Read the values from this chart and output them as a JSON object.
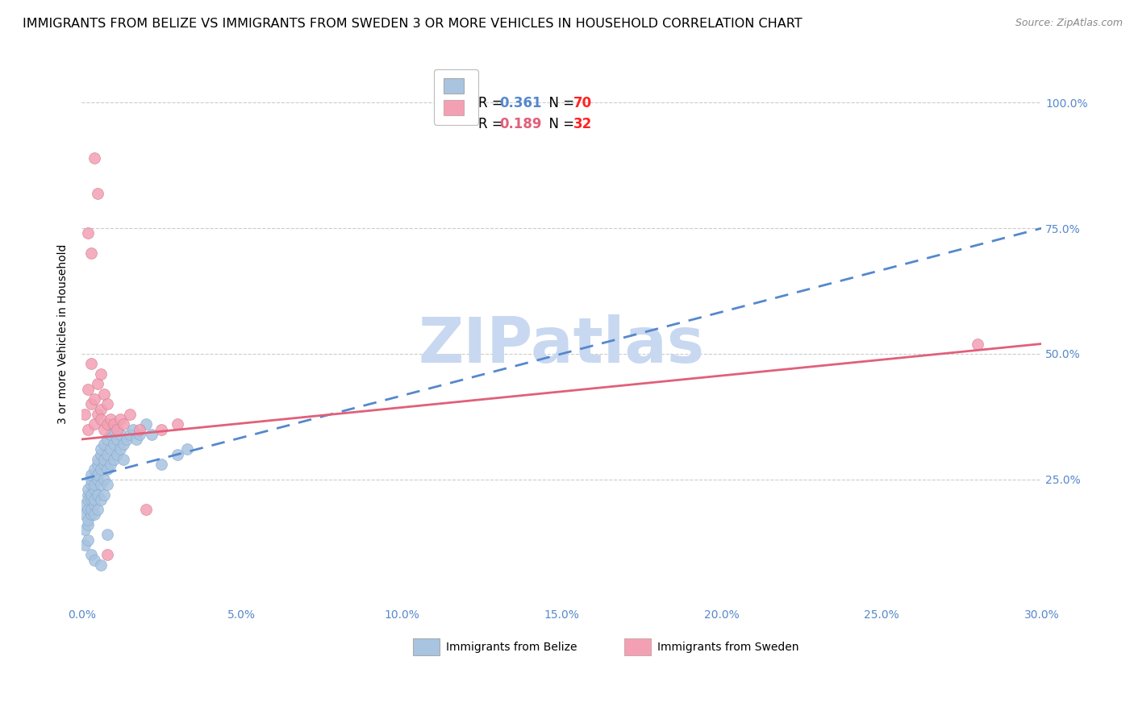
{
  "title": "IMMIGRANTS FROM BELIZE VS IMMIGRANTS FROM SWEDEN 3 OR MORE VEHICLES IN HOUSEHOLD CORRELATION CHART",
  "source": "Source: ZipAtlas.com",
  "ylabel": "3 or more Vehicles in Household",
  "ytick_labels": [
    "100.0%",
    "75.0%",
    "50.0%",
    "25.0%"
  ],
  "ytick_values": [
    1.0,
    0.75,
    0.5,
    0.25
  ],
  "xlim": [
    0.0,
    0.3
  ],
  "ylim": [
    0.0,
    1.08
  ],
  "belize_color": "#a8c4e0",
  "sweden_color": "#f4a0b4",
  "belize_line_color": "#5588cc",
  "sweden_line_color": "#e0607a",
  "belize_R": 0.361,
  "belize_N": 70,
  "sweden_R": 0.189,
  "sweden_N": 32,
  "legend_N_color": "#ff2222",
  "watermark": "ZIPatlas",
  "watermark_color": "#c8d8f0",
  "belize_x": [
    0.001,
    0.001,
    0.001,
    0.002,
    0.002,
    0.002,
    0.002,
    0.002,
    0.002,
    0.003,
    0.003,
    0.003,
    0.003,
    0.003,
    0.003,
    0.003,
    0.004,
    0.004,
    0.004,
    0.004,
    0.004,
    0.004,
    0.005,
    0.005,
    0.005,
    0.005,
    0.005,
    0.005,
    0.006,
    0.006,
    0.006,
    0.006,
    0.006,
    0.007,
    0.007,
    0.007,
    0.007,
    0.007,
    0.008,
    0.008,
    0.008,
    0.008,
    0.009,
    0.009,
    0.009,
    0.01,
    0.01,
    0.01,
    0.011,
    0.011,
    0.012,
    0.012,
    0.013,
    0.013,
    0.014,
    0.015,
    0.016,
    0.017,
    0.018,
    0.02,
    0.022,
    0.025,
    0.03,
    0.033,
    0.001,
    0.002,
    0.003,
    0.004,
    0.006,
    0.008
  ],
  "belize_y": [
    0.18,
    0.2,
    0.15,
    0.22,
    0.19,
    0.16,
    0.21,
    0.17,
    0.23,
    0.24,
    0.21,
    0.18,
    0.25,
    0.22,
    0.19,
    0.26,
    0.23,
    0.2,
    0.27,
    0.24,
    0.21,
    0.18,
    0.28,
    0.25,
    0.22,
    0.19,
    0.29,
    0.26,
    0.3,
    0.27,
    0.24,
    0.21,
    0.31,
    0.28,
    0.25,
    0.22,
    0.32,
    0.29,
    0.33,
    0.3,
    0.27,
    0.24,
    0.34,
    0.31,
    0.28,
    0.35,
    0.32,
    0.29,
    0.33,
    0.3,
    0.34,
    0.31,
    0.32,
    0.29,
    0.33,
    0.34,
    0.35,
    0.33,
    0.34,
    0.36,
    0.34,
    0.28,
    0.3,
    0.31,
    0.12,
    0.13,
    0.1,
    0.09,
    0.08,
    0.14
  ],
  "sweden_x": [
    0.001,
    0.002,
    0.002,
    0.003,
    0.003,
    0.004,
    0.004,
    0.005,
    0.005,
    0.006,
    0.006,
    0.007,
    0.007,
    0.008,
    0.008,
    0.009,
    0.01,
    0.011,
    0.012,
    0.013,
    0.015,
    0.018,
    0.02,
    0.025,
    0.03,
    0.28,
    0.003,
    0.004,
    0.005,
    0.002,
    0.006,
    0.008
  ],
  "sweden_y": [
    0.38,
    0.43,
    0.35,
    0.4,
    0.48,
    0.36,
    0.41,
    0.38,
    0.44,
    0.39,
    0.37,
    0.42,
    0.35,
    0.4,
    0.36,
    0.37,
    0.36,
    0.35,
    0.37,
    0.36,
    0.38,
    0.35,
    0.19,
    0.35,
    0.36,
    0.52,
    0.7,
    0.89,
    0.82,
    0.74,
    0.46,
    0.1
  ],
  "grid_color": "#cccccc",
  "background_color": "#ffffff",
  "title_fontsize": 11.5,
  "axis_label_fontsize": 10,
  "tick_fontsize": 10,
  "legend_fontsize": 12
}
